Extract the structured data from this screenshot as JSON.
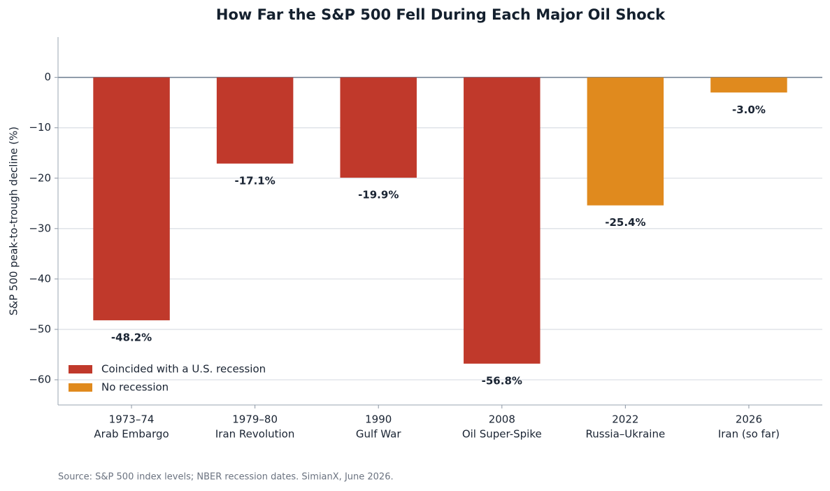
{
  "chart_data": {
    "type": "bar",
    "title": "How Far the S&P 500 Fell During Each Major Oil Shock",
    "y_label": "S&P 500 peak-to-trough decline (%)",
    "source": "Source: S&P 500 index levels; NBER recession dates. SimianX, June 2026.",
    "categories": [
      [
        "1973–74",
        "Arab Embargo"
      ],
      [
        "1979–80",
        "Iran Revolution"
      ],
      [
        "1990",
        "Gulf War"
      ],
      [
        "2008",
        "Oil Super-Spike"
      ],
      [
        "2022",
        "Russia–Ukraine"
      ],
      [
        "2026",
        "Iran (so far)"
      ]
    ],
    "series": [
      {
        "name": "Coincided with a U.S. recession",
        "color": "#c0392b",
        "values": [
          -48.2,
          -17.1,
          -19.9,
          -56.8,
          null,
          null
        ],
        "value_labels": [
          "-48.2%",
          "-17.1%",
          "-19.9%",
          "-56.8%",
          null,
          null
        ]
      },
      {
        "name": "No recession",
        "color": "#e08a1e",
        "values": [
          null,
          null,
          null,
          null,
          -25.4,
          -3.0
        ],
        "value_labels": [
          null,
          null,
          null,
          null,
          "-25.4%",
          "-3.0%"
        ]
      }
    ],
    "ylim": [
      -65,
      8
    ],
    "yticks": [
      {
        "value": 0,
        "label": "0"
      },
      {
        "value": -10,
        "label": "−10"
      },
      {
        "value": -20,
        "label": "−20"
      },
      {
        "value": -30,
        "label": "−30"
      },
      {
        "value": -40,
        "label": "−40"
      },
      {
        "value": -50,
        "label": "−50"
      },
      {
        "value": -60,
        "label": "−60"
      }
    ],
    "grid": true,
    "legend": "lower left"
  }
}
